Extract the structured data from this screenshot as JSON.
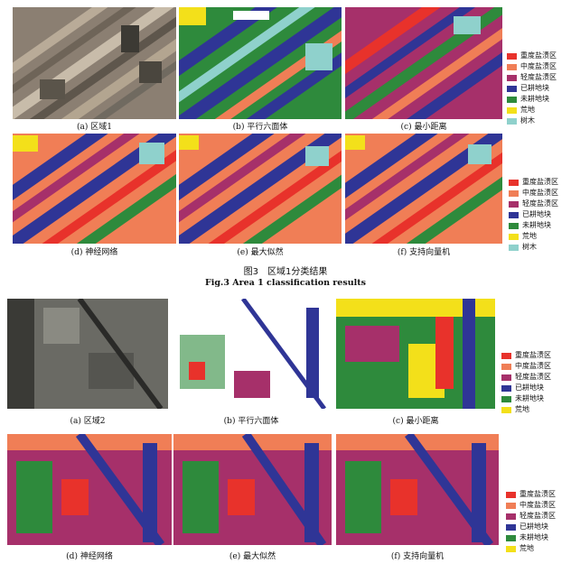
{
  "colors": {
    "heavy": "#e8322b",
    "moderate": "#f07e56",
    "light": "#a6306a",
    "cultivated": "#2f3596",
    "uncultivated": "#2e8a3c",
    "wasteland": "#f3e01a",
    "trees": "#8fd1cc"
  },
  "legend_labels": [
    "重度盐渍区",
    "中度盐渍区",
    "轻度盐渍区",
    "已耕地块",
    "未耕地块",
    "荒地",
    "树木"
  ],
  "figure3": {
    "captions": [
      "(a) 区域1",
      "(b) 平行六面体",
      "(c) 最小距离",
      "(d) 神经网络",
      "(e) 最大似然",
      "(f) 支持向量机"
    ],
    "title_cn": "图3　区域1分类结果",
    "title_en": "Fig.3 Area 1 classification results"
  },
  "figure4": {
    "captions": [
      "(a) 区域2",
      "(b) 平行六面体",
      "(c) 最小距离",
      "(d) 神经网络",
      "(e) 最大似然",
      "(f) 支持向量机"
    ],
    "legend_count": 6
  }
}
